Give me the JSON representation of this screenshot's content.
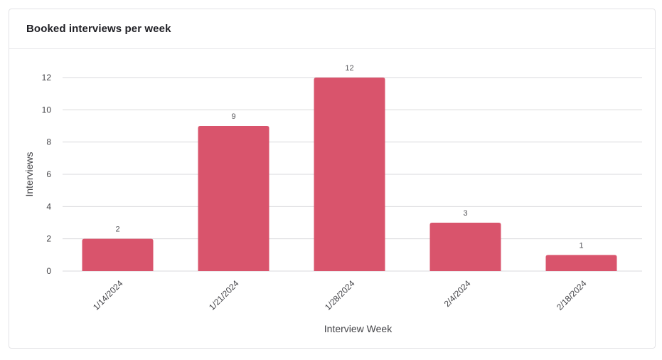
{
  "card": {
    "title": "Booked interviews per week"
  },
  "chart_data": {
    "type": "bar",
    "categories": [
      "1/14/2024",
      "1/21/2024",
      "1/28/2024",
      "2/4/2024",
      "2/18/2024"
    ],
    "values": [
      2,
      9,
      12,
      3,
      1
    ],
    "title": "",
    "xlabel": "Interview Week",
    "ylabel": "Interviews",
    "ylim": [
      0,
      12
    ],
    "yticks": [
      0,
      2,
      4,
      6,
      8,
      10,
      12
    ],
    "grid": true,
    "legend": "none",
    "data_labels": true,
    "bar_color": "#d9546c",
    "grid_color": "#d9d9dc"
  }
}
